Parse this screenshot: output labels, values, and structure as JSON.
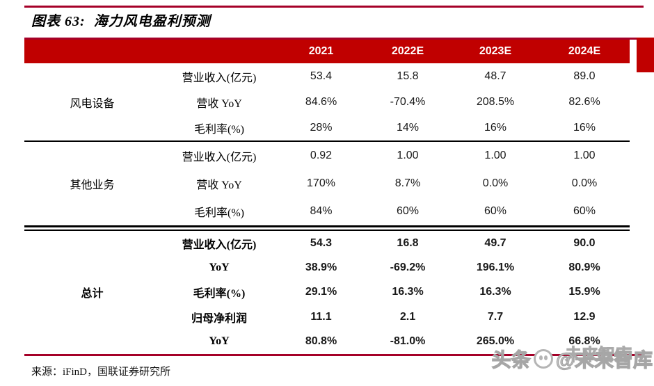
{
  "title": "图表 63:  海力风电盈利预测",
  "header": {
    "years": [
      "2021",
      "2022E",
      "2023E",
      "2024E"
    ]
  },
  "sections": [
    {
      "group": "风电设备",
      "bold": false,
      "rows": [
        {
          "label": "营业收入(亿元)",
          "values": [
            "53.4",
            "15.8",
            "48.7",
            "89.0"
          ]
        },
        {
          "label": "营收 YoY",
          "values": [
            "84.6%",
            "-70.4%",
            "208.5%",
            "82.6%"
          ]
        },
        {
          "label": "毛利率(%)",
          "values": [
            "28%",
            "14%",
            "16%",
            "16%"
          ]
        }
      ]
    },
    {
      "group": "其他业务",
      "bold": false,
      "rows": [
        {
          "label": "营业收入(亿元)",
          "values": [
            "0.92",
            "1.00",
            "1.00",
            "1.00"
          ]
        },
        {
          "label": "营收 YoY",
          "values": [
            "170%",
            "8.7%",
            "0.0%",
            "0.0%"
          ]
        },
        {
          "label": "毛利率(%)",
          "values": [
            "84%",
            "60%",
            "60%",
            "60%"
          ]
        }
      ]
    },
    {
      "group": "总计",
      "bold": true,
      "rows": [
        {
          "label": "营业收入(亿元)",
          "values": [
            "54.3",
            "16.8",
            "49.7",
            "90.0"
          ]
        },
        {
          "label": "YoY",
          "values": [
            "38.9%",
            "-69.2%",
            "196.1%",
            "80.9%"
          ]
        },
        {
          "label": "毛利率(%)",
          "values": [
            "29.1%",
            "16.3%",
            "16.3%",
            "15.9%"
          ]
        },
        {
          "label": "归母净利润",
          "values": [
            "11.1",
            "2.1",
            "7.7",
            "12.9"
          ]
        },
        {
          "label": "YoY",
          "values": [
            "80.8%",
            "-81.0%",
            "265.0%",
            "66.8%"
          ]
        }
      ]
    }
  ],
  "source": "来源：iFinD，国联证券研究所",
  "watermark": {
    "part1": "头条",
    "part2": "@未来智库",
    "ghost": "未来智库"
  },
  "colors": {
    "header_bg": "#C00000",
    "rule": "#A50028",
    "divider": "#000000"
  },
  "chart_data": {
    "type": "table",
    "title": "图表 63: 海力风电盈利预测",
    "columns": [
      "分组",
      "指标",
      "2021",
      "2022E",
      "2023E",
      "2024E"
    ],
    "rows": [
      [
        "风电设备",
        "营业收入(亿元)",
        "53.4",
        "15.8",
        "48.7",
        "89.0"
      ],
      [
        "风电设备",
        "营收 YoY",
        "84.6%",
        "-70.4%",
        "208.5%",
        "82.6%"
      ],
      [
        "风电设备",
        "毛利率(%)",
        "28%",
        "14%",
        "16%",
        "16%"
      ],
      [
        "其他业务",
        "营业收入(亿元)",
        "0.92",
        "1.00",
        "1.00",
        "1.00"
      ],
      [
        "其他业务",
        "营收 YoY",
        "170%",
        "8.7%",
        "0.0%",
        "0.0%"
      ],
      [
        "其他业务",
        "毛利率(%)",
        "84%",
        "60%",
        "60%",
        "60%"
      ],
      [
        "总计",
        "营业收入(亿元)",
        "54.3",
        "16.8",
        "49.7",
        "90.0"
      ],
      [
        "总计",
        "YoY",
        "38.9%",
        "-69.2%",
        "196.1%",
        "80.9%"
      ],
      [
        "总计",
        "毛利率(%)",
        "29.1%",
        "16.3%",
        "16.3%",
        "15.9%"
      ],
      [
        "总计",
        "归母净利润",
        "11.1",
        "2.1",
        "7.7",
        "12.9"
      ],
      [
        "总计",
        "YoY",
        "80.8%",
        "-81.0%",
        "265.0%",
        "66.8%"
      ]
    ]
  }
}
